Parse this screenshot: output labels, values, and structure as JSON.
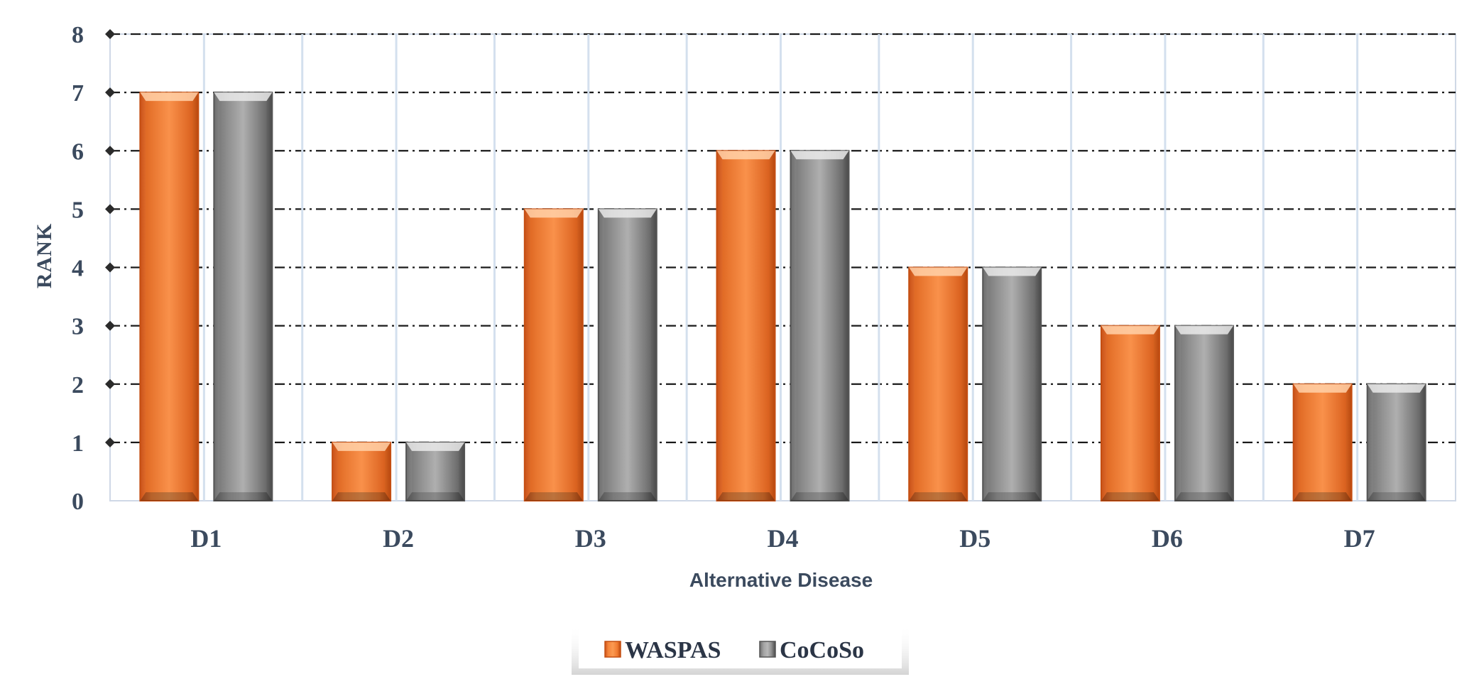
{
  "chart_data": {
    "type": "bar",
    "categories": [
      "D1",
      "D2",
      "D3",
      "D4",
      "D5",
      "D6",
      "D7"
    ],
    "series": [
      {
        "name": "WASPAS",
        "values": [
          7,
          1,
          5,
          6,
          4,
          3,
          2
        ],
        "color": "#f07a30"
      },
      {
        "name": "CoCoSo",
        "values": [
          7,
          1,
          5,
          6,
          4,
          3,
          2
        ],
        "color": "#8c8c8c"
      }
    ],
    "xlabel": "Alternative Disease",
    "ylabel": "RANK",
    "ylim": [
      0,
      8
    ],
    "yticks": [
      0,
      1,
      2,
      3,
      4,
      5,
      6,
      7,
      8
    ],
    "grid": true,
    "legend_position": "bottom-center"
  }
}
